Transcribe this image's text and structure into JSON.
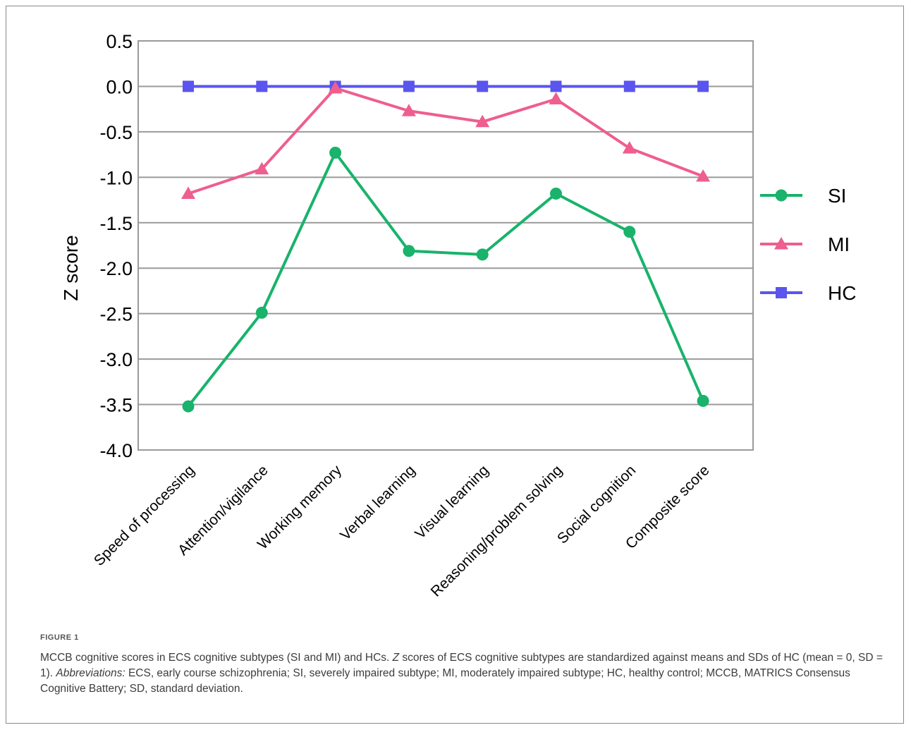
{
  "chart_data": {
    "type": "line",
    "categories": [
      "Speed of processing",
      "Attention/vigilance",
      "Working memory",
      "Verbal learning",
      "Visual learning",
      "Reasoning/problem solving",
      "Social cognition",
      "Composite score"
    ],
    "series": [
      {
        "name": "SI",
        "color": "#19b36b",
        "marker": "circle",
        "values": [
          -3.52,
          -2.49,
          -0.73,
          -1.81,
          -1.85,
          -1.18,
          -1.6,
          -3.46
        ]
      },
      {
        "name": "MI",
        "color": "#ee5e8e",
        "marker": "triangle",
        "values": [
          -1.18,
          -0.91,
          -0.02,
          -0.27,
          -0.39,
          -0.14,
          -0.68,
          -0.99
        ]
      },
      {
        "name": "HC",
        "color": "#5a55ee",
        "marker": "square",
        "values": [
          0,
          0,
          0,
          0,
          0,
          0,
          0,
          0
        ]
      }
    ],
    "ylabel": "Z score",
    "xlabel": "",
    "ylim": [
      -4.0,
      0.5
    ],
    "yticks": [
      "0.5",
      "0.0",
      "-0.5",
      "-1.0",
      "-1.5",
      "-2.0",
      "-2.5",
      "-3.0",
      "-3.5",
      "-4.0"
    ],
    "grid": true,
    "legend": "right"
  },
  "caption": {
    "label": "FIGURE 1",
    "p1": "MCCB cognitive scores in ECS cognitive subtypes (SI and MI) and HCs. ",
    "z": "Z",
    "p2": " scores of ECS cognitive subtypes are standardized against means and SDs of HC (mean = 0, SD = 1). ",
    "abbr": "Abbreviations:",
    "p3": " ECS, early course schizophrenia; SI, severely impaired subtype; MI, moderately impaired subtype; HC, healthy control; MCCB, MATRICS Consensus Cognitive Battery; SD, standard deviation."
  }
}
